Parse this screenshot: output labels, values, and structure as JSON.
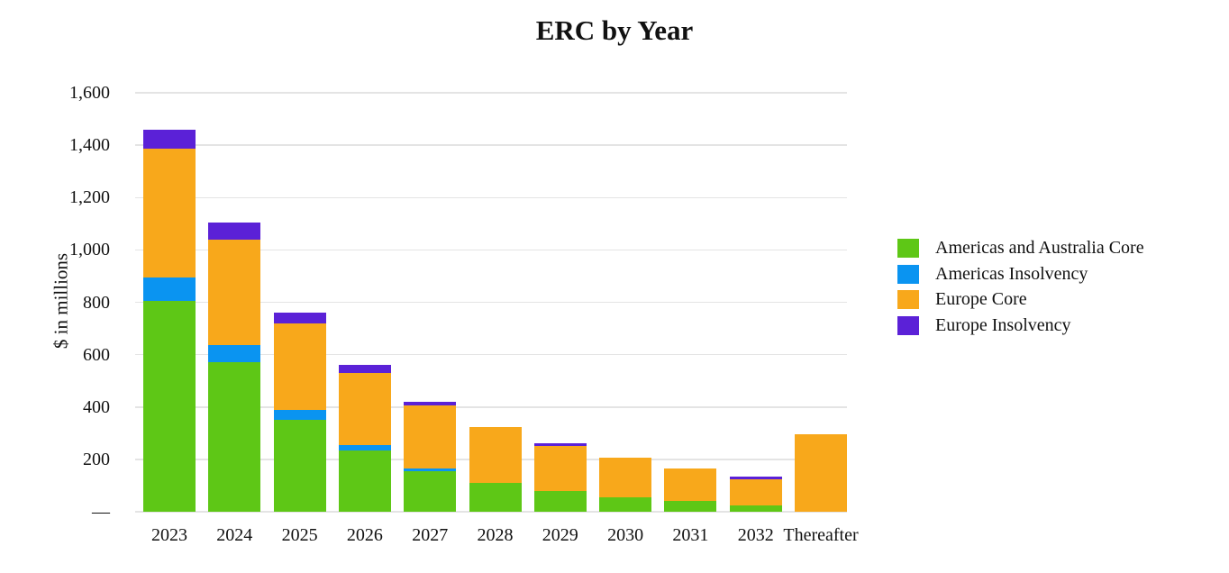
{
  "chart_data": {
    "type": "bar",
    "stacked": true,
    "title": "ERC by Year",
    "xlabel": "",
    "ylabel": "$ in millions",
    "units": "$ in millions",
    "grid": "horizontal",
    "legend_position": "right",
    "ylim": [
      0,
      1600
    ],
    "ytick_step": 200,
    "ytick_labels_bottom_to_top": [
      "—",
      "200",
      "400",
      "600",
      "800",
      "1,000",
      "1,200",
      "1,400",
      "1,600"
    ],
    "categories": [
      "2023",
      "2024",
      "2025",
      "2026",
      "2027",
      "2028",
      "2029",
      "2030",
      "2031",
      "2032",
      "Thereafter"
    ],
    "series": [
      {
        "name": "Americas and Australia Core",
        "color": "#5ec716",
        "values": [
          805,
          570,
          350,
          235,
          155,
          110,
          80,
          55,
          40,
          25,
          0
        ]
      },
      {
        "name": "Americas Insolvency",
        "color": "#0a94f1",
        "values": [
          90,
          65,
          40,
          20,
          10,
          0,
          0,
          0,
          0,
          0,
          0
        ]
      },
      {
        "name": "Europe Core",
        "color": "#f8a81b",
        "values": [
          490,
          405,
          330,
          275,
          240,
          215,
          170,
          150,
          125,
          100,
          295
        ]
      },
      {
        "name": "Europe Insolvency",
        "color": "#5b21d7",
        "values": [
          75,
          65,
          40,
          30,
          15,
          0,
          10,
          0,
          0,
          10,
          0
        ]
      }
    ],
    "totals": [
      1460,
      1105,
      760,
      560,
      420,
      325,
      260,
      205,
      165,
      135,
      295
    ]
  }
}
